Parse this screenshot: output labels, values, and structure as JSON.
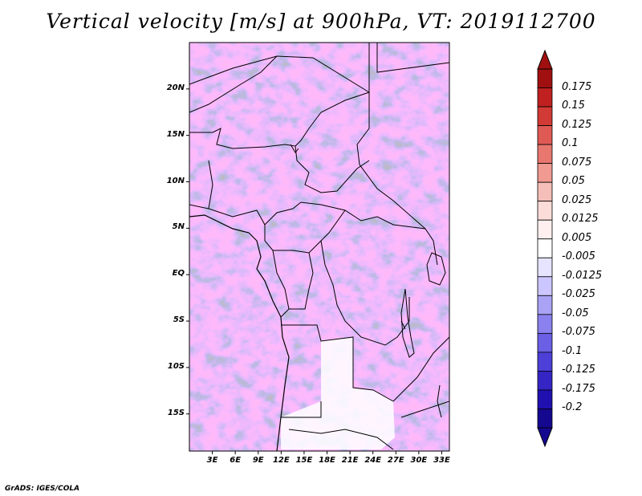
{
  "title": "Vertical velocity [m/s] at 900hPa, VT: 2019112700",
  "footer": "GrADS: IGES/COLA",
  "map": {
    "region": "Central Africa",
    "lon_range": [
      0,
      34
    ],
    "lat_range": [
      -19,
      25
    ],
    "lat_labels": [
      "20N",
      "15N",
      "10N",
      "5N",
      "EQ",
      "5S",
      "10S",
      "15S"
    ],
    "lon_labels": [
      "3E",
      "6E",
      "9E",
      "12E",
      "15E",
      "18E",
      "21E",
      "24E",
      "27E",
      "30E",
      "33E"
    ],
    "field_colors": {
      "positive": "#e8736b",
      "negative": "#7b6fe8",
      "neutral": "#ffffff"
    }
  },
  "colorbar": {
    "labels": [
      "0.175",
      "0.15",
      "0.125",
      "0.1",
      "0.075",
      "0.05",
      "0.025",
      "0.0125",
      "0.005",
      "-0.005",
      "-0.0125",
      "-0.025",
      "-0.05",
      "-0.075",
      "-0.1",
      "-0.125",
      "-0.175",
      "-0.2"
    ],
    "colors": [
      "#a01010",
      "#c02020",
      "#d23a35",
      "#e05a55",
      "#e8776f",
      "#f09a92",
      "#f6beb8",
      "#fbdcd8",
      "#fff0ef",
      "#ffffff",
      "#e6e4ff",
      "#cbc6ff",
      "#aaa3f5",
      "#8a80ee",
      "#6a5fe5",
      "#4d40d8",
      "#3525c5",
      "#2010b0",
      "#150890"
    ]
  }
}
